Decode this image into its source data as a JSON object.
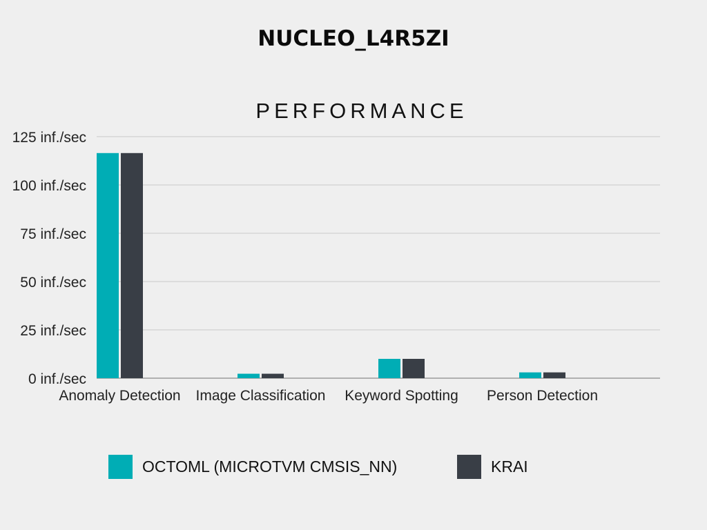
{
  "title": "NUCLEO_L4R5ZI",
  "chart_data": {
    "type": "bar",
    "title": "PERFORMANCE",
    "xlabel": "",
    "ylabel": "",
    "categories": [
      "Anomaly Detection",
      "Image Classification",
      "Keyword Spotting",
      "Person Detection"
    ],
    "series": [
      {
        "name": "OCTOML (MICROTVM CMSIS_NN)",
        "color": "#00adb5",
        "values": [
          116.5,
          2.3,
          10,
          3
        ]
      },
      {
        "name": "KRAI",
        "color": "#393e46",
        "values": [
          116.5,
          2.3,
          10,
          3
        ]
      }
    ],
    "ylim": [
      0,
      125
    ],
    "yticks": [
      0,
      25,
      50,
      75,
      100,
      125
    ],
    "ytick_labels": [
      "0 inf./sec",
      "25 inf./sec",
      "50 inf./sec",
      "75 inf./sec",
      "100 inf./sec",
      "125 inf./sec"
    ],
    "grid": true,
    "legend_position": "bottom"
  }
}
